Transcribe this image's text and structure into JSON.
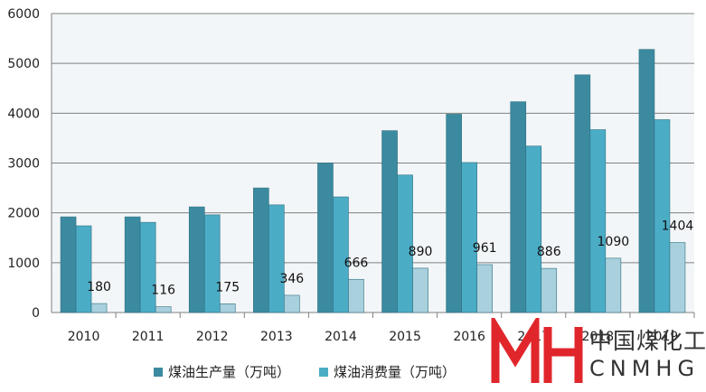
{
  "chart_data": {
    "type": "bar",
    "categories": [
      "2010",
      "2011",
      "2012",
      "2013",
      "2014",
      "2015",
      "2016",
      "2017",
      "2018",
      "2019"
    ],
    "series": [
      {
        "name": "煤油生产量（万吨）",
        "values": [
          1920,
          1920,
          2120,
          2500,
          3000,
          3650,
          3980,
          4230,
          4770,
          5280
        ],
        "color": "#3b8aa0"
      },
      {
        "name": "煤油消费量（万吨）",
        "values": [
          1740,
          1810,
          1960,
          2160,
          2320,
          2760,
          3010,
          3340,
          3670,
          3870
        ],
        "color": "#4bacc6"
      },
      {
        "name": "",
        "values": [
          180,
          116,
          175,
          346,
          666,
          890,
          961,
          886,
          1090,
          1404
        ],
        "color": "#a9d0dd"
      }
    ],
    "data_labels": [
      "180",
      "116",
      "175",
      "346",
      "666",
      "890",
      "961",
      "886",
      "1090",
      "1404"
    ],
    "yticks": [
      "0",
      "1000",
      "2000",
      "3000",
      "4000",
      "5000",
      "6000"
    ],
    "ylim": [
      0,
      6000
    ],
    "grid": true,
    "legend_position": "bottom"
  },
  "logo": {
    "text_cn": "中国煤化工",
    "text_en": "CNMHG",
    "color": "#e0262b"
  }
}
